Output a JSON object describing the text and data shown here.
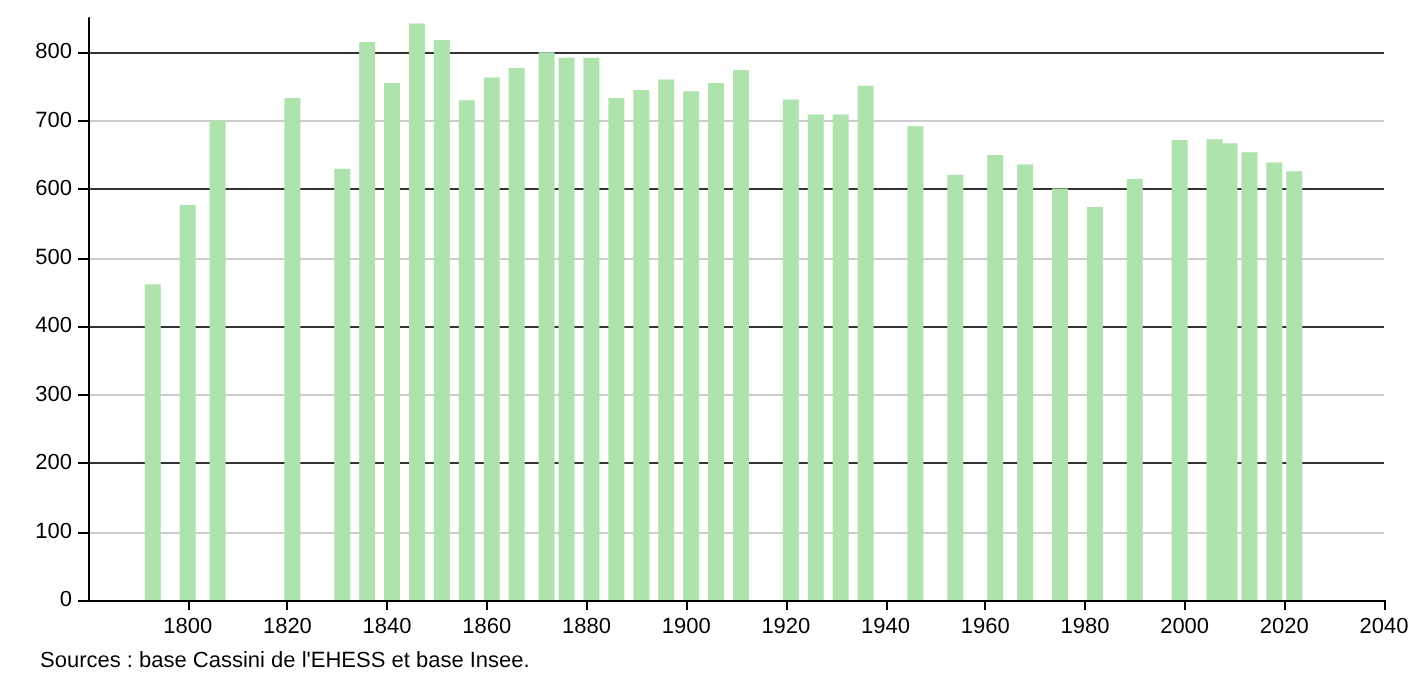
{
  "chart_data": {
    "type": "bar",
    "x": [
      1793,
      1800,
      1806,
      1821,
      1831,
      1836,
      1841,
      1846,
      1851,
      1856,
      1861,
      1866,
      1872,
      1876,
      1881,
      1886,
      1891,
      1896,
      1901,
      1906,
      1911,
      1921,
      1926,
      1931,
      1936,
      1946,
      1954,
      1962,
      1968,
      1975,
      1982,
      1990,
      1999,
      2006,
      2009,
      2013,
      2018,
      2022
    ],
    "values": [
      461,
      577,
      700,
      733,
      630,
      815,
      755,
      842,
      818,
      730,
      763,
      777,
      800,
      792,
      792,
      733,
      745,
      760,
      743,
      755,
      774,
      731,
      709,
      709,
      751,
      692,
      621,
      650,
      636,
      601,
      574,
      615,
      672,
      673,
      667,
      654,
      639,
      626
    ],
    "color": "#aee3ae",
    "xlim": [
      1780,
      2040
    ],
    "xticks": [
      1800,
      1820,
      1840,
      1860,
      1880,
      1900,
      1920,
      1940,
      1960,
      1980,
      2000,
      2020,
      2040
    ],
    "ylim": [
      0,
      850
    ],
    "yticks": [
      0,
      100,
      200,
      300,
      400,
      500,
      600,
      700,
      800
    ],
    "grid": "y",
    "annotations": [
      "Sources : base Cassini de l'EHESS et base Insee."
    ]
  }
}
